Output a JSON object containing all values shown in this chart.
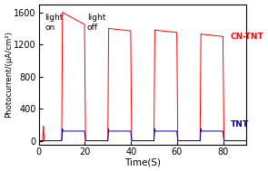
{
  "xlabel": "Time(S)",
  "ylabel": "Photocurrent/(μA/cm²)",
  "xlim": [
    0,
    90
  ],
  "ylim": [
    -50,
    1700
  ],
  "yticks": [
    0,
    400,
    800,
    1200,
    1600
  ],
  "xticks": [
    0,
    20,
    40,
    60,
    80
  ],
  "cn_tnt_color": "#ff0000",
  "tnt_color": "#0000bb",
  "annotation_light_on": "light\non",
  "annotation_light_off": "light\noff",
  "cn_tnt_label": "CN-TNT",
  "tnt_label": "TNT",
  "on_times": [
    10,
    30,
    50,
    70
  ],
  "off_times": [
    20,
    40,
    60,
    80
  ],
  "cn_peaks": [
    1600,
    1400,
    1380,
    1330
  ],
  "cn_plateaus": [
    1450,
    1370,
    1350,
    1300
  ],
  "tnt_plateau": 120,
  "tnt_peak": 150,
  "pre_spike_t": 2.0,
  "pre_spike_val": 180
}
